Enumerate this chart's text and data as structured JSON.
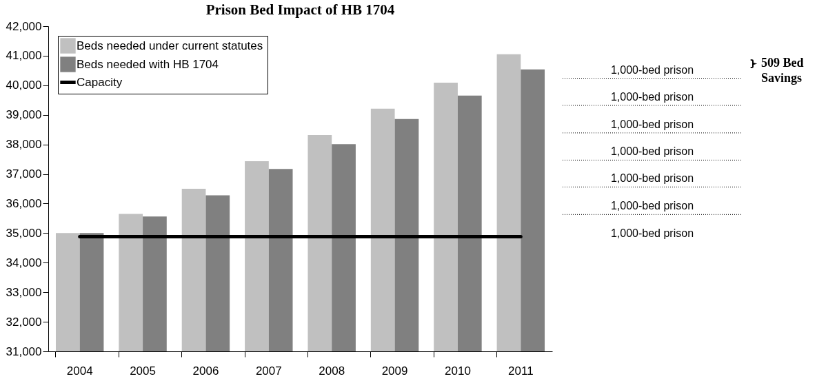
{
  "chart_data": {
    "type": "bar",
    "title": "Prison Bed Impact of HB 1704",
    "categories": [
      "2004",
      "2005",
      "2006",
      "2007",
      "2008",
      "2009",
      "2010",
      "2011"
    ],
    "series": [
      {
        "name": "Beds needed under current statutes",
        "color": "#c0c0c0",
        "values": [
          35000,
          35650,
          36500,
          37430,
          38320,
          39210,
          40090,
          41050
        ]
      },
      {
        "name": "Beds needed with HB 1704",
        "color": "#808080",
        "values": [
          35000,
          35560,
          36280,
          37170,
          38010,
          38860,
          39650,
          40540
        ]
      },
      {
        "name": "Capacity",
        "type": "line",
        "color": "#000000",
        "values": [
          34880,
          34880,
          34880,
          34880,
          34880,
          34880,
          34880,
          34880
        ]
      }
    ],
    "ylim": [
      31000,
      42000
    ],
    "yticks": [
      {
        "value": 31000,
        "label": "31,000"
      },
      {
        "value": 32000,
        "label": "32,000"
      },
      {
        "value": 33000,
        "label": "33,000"
      },
      {
        "value": 34000,
        "label": "34,000"
      },
      {
        "value": 35000,
        "label": "35,000"
      },
      {
        "value": 36000,
        "label": "36,000"
      },
      {
        "value": 37000,
        "label": "37,000"
      },
      {
        "value": 38000,
        "label": "38,000"
      },
      {
        "value": 39000,
        "label": "39,000"
      },
      {
        "value": 40000,
        "label": "40,000"
      },
      {
        "value": 41000,
        "label": "41,000"
      },
      {
        "value": 42000,
        "label": "42,000"
      }
    ],
    "ref_lines": [
      {
        "axis": "y",
        "value": 40240,
        "label": "1,000-bed prison",
        "line_style": "dotted"
      },
      {
        "axis": "y",
        "value": 39320,
        "label": "1,000-bed prison",
        "line_style": "dotted"
      },
      {
        "axis": "y",
        "value": 38390,
        "label": "1,000-bed prison",
        "line_style": "dotted"
      },
      {
        "axis": "y",
        "value": 37470,
        "label": "1,000-bed prison",
        "line_style": "dotted"
      },
      {
        "axis": "y",
        "value": 36560,
        "label": "1,000-bed prison",
        "line_style": "dotted"
      },
      {
        "axis": "y",
        "value": 35630,
        "label": "1,000-bed prison",
        "line_style": "dotted"
      }
    ],
    "annotations": [
      "1,000-bed prison",
      "509 Bed\nSavings"
    ],
    "legend": "top left",
    "grid": false
  }
}
